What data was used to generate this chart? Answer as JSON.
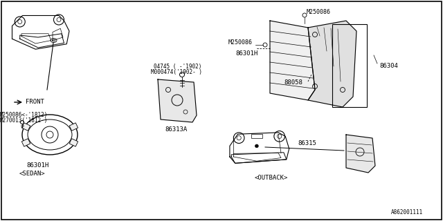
{
  "bg_color": "#ffffff",
  "border_color": "#000000",
  "line_color": "#000000",
  "text_color": "#000000",
  "part_number": "A862001111",
  "labels": {
    "front": "FRONT",
    "sedan": "<SEDAN>",
    "outback": "<OUTBACK>",
    "86301H_bottom": "86301H",
    "86301H_top": "86301H",
    "86313A": "86313A",
    "86304": "86304",
    "88058": "88058",
    "86315": "86315",
    "M250086_1": "M250086<-'1812)",
    "M270013": "M270013('1812-)",
    "M250086_bolt": "M250086",
    "M250086_top": "M250086",
    "04745": "04745 ( -'1902)",
    "M000474": "M000474('1902- )"
  }
}
